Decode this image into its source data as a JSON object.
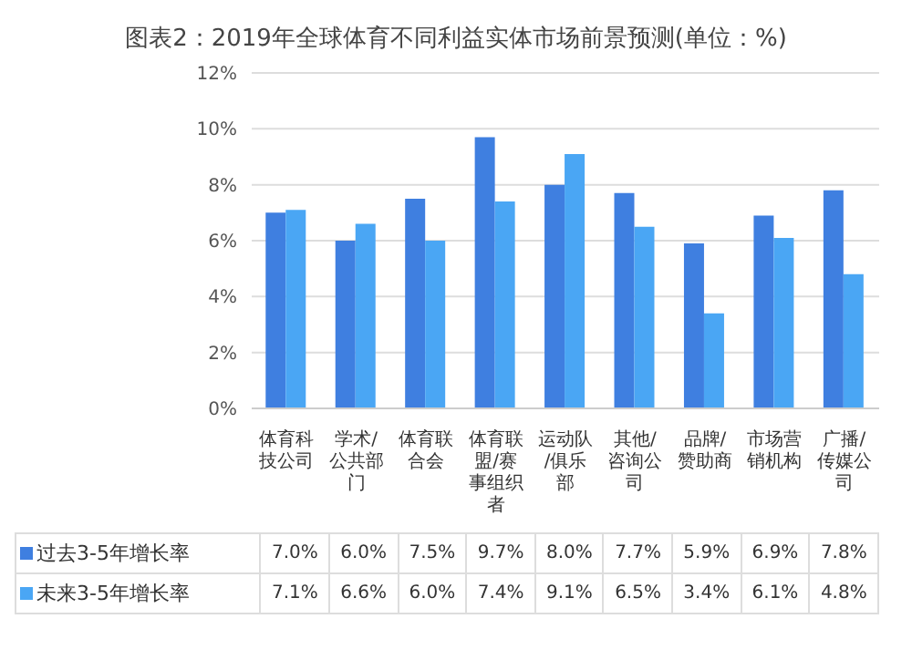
{
  "chart_data": {
    "type": "bar",
    "title": "图表2：2019年全球体育不同利益实体市场前景预测(单位：%)",
    "categories": [
      "体育科技公司",
      "学术/公共部门",
      "体育联合会",
      "体育联盟/赛事组织者",
      "运动队/俱乐部",
      "其他/咨询公司",
      "品牌/赞助商",
      "市场营销机构",
      "广播/传媒公司"
    ],
    "series": [
      {
        "name": "过去3-5年增长率",
        "color": "#3f7fe0",
        "values": [
          7.0,
          6.0,
          7.5,
          9.7,
          8.0,
          7.7,
          5.9,
          6.9,
          7.8
        ],
        "value_labels": [
          "7.0%",
          "6.0%",
          "7.5%",
          "9.7%",
          "8.0%",
          "7.7%",
          "5.9%",
          "6.9%",
          "7.8%"
        ]
      },
      {
        "name": "未来3-5年增长率",
        "color": "#4aa6f4",
        "values": [
          7.1,
          6.6,
          6.0,
          7.4,
          9.1,
          6.5,
          3.4,
          6.1,
          4.8
        ],
        "value_labels": [
          "7.1%",
          "6.6%",
          "6.0%",
          "7.4%",
          "9.1%",
          "6.5%",
          "3.4%",
          "6.1%",
          "4.8%"
        ]
      }
    ],
    "ylim": [
      0,
      12
    ],
    "yticks": [
      {
        "value": 0,
        "label": "0%"
      },
      {
        "value": 2,
        "label": "2%"
      },
      {
        "value": 4,
        "label": "4%"
      },
      {
        "value": 6,
        "label": "6%"
      },
      {
        "value": 8,
        "label": "8%"
      },
      {
        "value": 10,
        "label": "10%"
      },
      {
        "value": 12,
        "label": "12%"
      }
    ],
    "grid": "y",
    "legend": "bottom"
  }
}
